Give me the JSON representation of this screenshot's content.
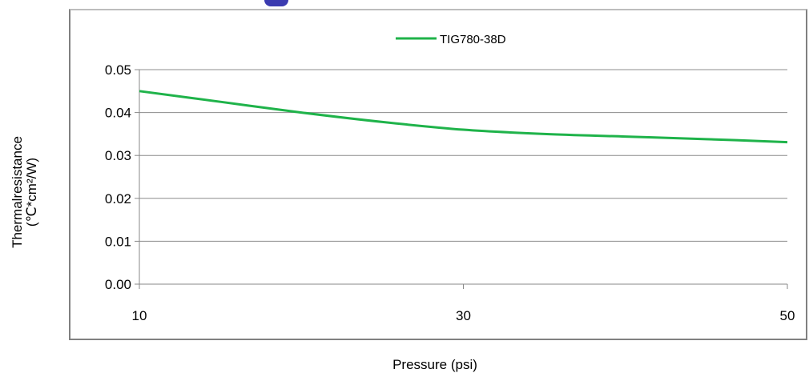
{
  "chart_data": {
    "type": "line",
    "title": "",
    "xlabel": "Pressure (psi)",
    "ylabel_line1": "Thermalresistance",
    "ylabel_line2": "(℃*cm²/W)",
    "xlim": [
      10,
      50
    ],
    "ylim": [
      0,
      0.05
    ],
    "x_ticks": [
      10,
      30,
      50
    ],
    "x_tick_labels": [
      "10",
      "30",
      "50"
    ],
    "y_ticks": [
      0,
      0.01,
      0.02,
      0.03,
      0.04,
      0.05
    ],
    "y_tick_labels": [
      "0.00",
      "0.01",
      "0.02",
      "0.03",
      "0.04",
      "0.05"
    ],
    "grid": "horizontal",
    "legend_position": "top-center",
    "series": [
      {
        "name": "TIG780-38D",
        "color": "#1fb34a",
        "x": [
          10,
          15,
          20,
          25,
          30,
          35,
          40,
          45,
          50
        ],
        "y": [
          0.045,
          0.0425,
          0.04,
          0.0378,
          0.036,
          0.035,
          0.0344,
          0.0338,
          0.0331
        ]
      }
    ]
  }
}
